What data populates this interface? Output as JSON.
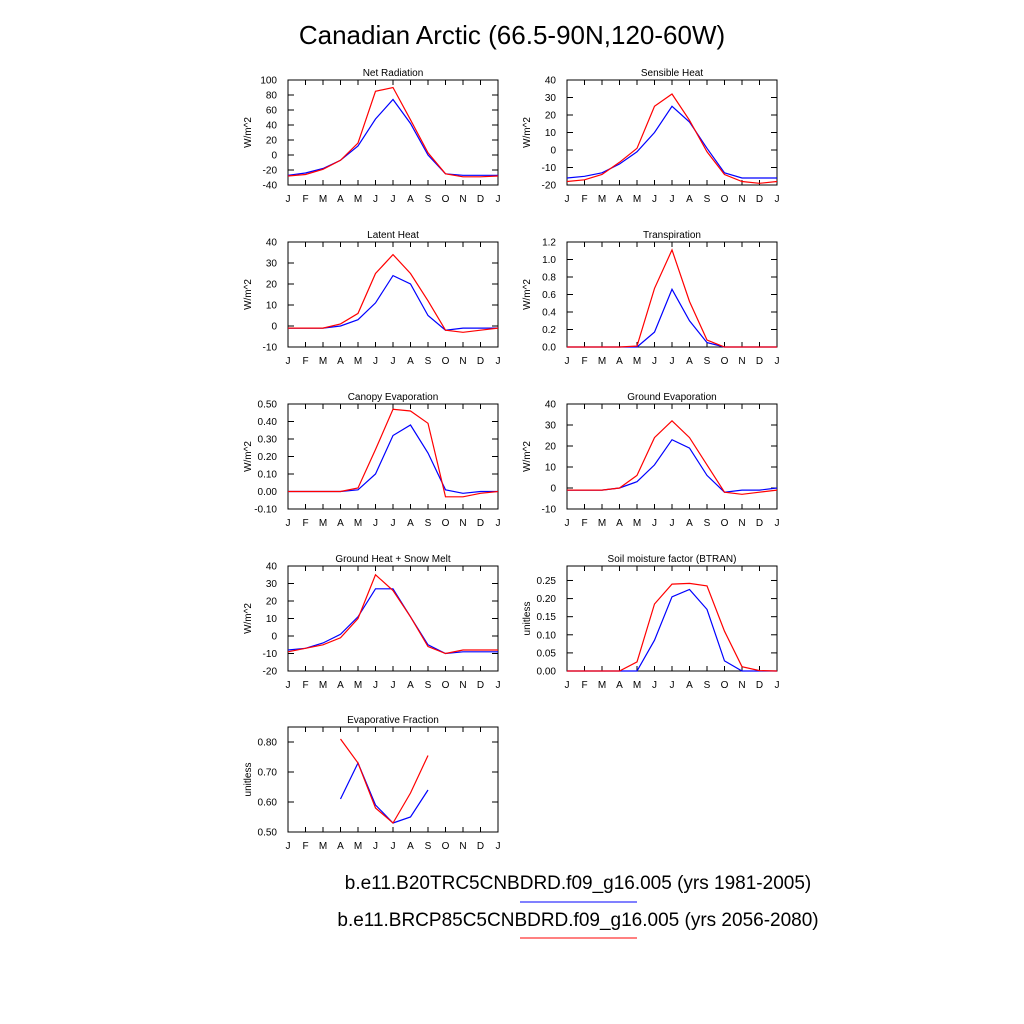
{
  "figure": {
    "title": "Canadian Arctic (66.5-90N,120-60W)",
    "legend": [
      {
        "label": "b.e11.B20TRC5CNBDRD.f09_g16.005 (yrs 1981-2005)",
        "color": "#0000ff"
      },
      {
        "label": "b.e11.BRCP85C5CNBDRD.f09_g16.005 (yrs 2056-2080)",
        "color": "#ff0000"
      }
    ]
  },
  "chart_data": [
    {
      "type": "line",
      "title": "Net Radiation",
      "ylabel": "W/m^2",
      "x": [
        "J",
        "F",
        "M",
        "A",
        "M",
        "J",
        "J",
        "A",
        "S",
        "O",
        "N",
        "D",
        "J"
      ],
      "ylim": [
        -40,
        100
      ],
      "yticks": [
        "-40",
        "-20",
        "0",
        "20",
        "40",
        "60",
        "80",
        "100"
      ],
      "series": [
        {
          "color": "#0000ff",
          "values": [
            -27,
            -24,
            -18,
            -7,
            12,
            48,
            74,
            42,
            0,
            -25,
            -27,
            -27,
            -27
          ]
        },
        {
          "color": "#ff0000",
          "values": [
            -28,
            -26,
            -19,
            -7,
            16,
            85,
            90,
            47,
            3,
            -25,
            -29,
            -29,
            -28
          ]
        }
      ]
    },
    {
      "type": "line",
      "title": "Sensible Heat",
      "ylabel": "W/m^2",
      "x": [
        "J",
        "F",
        "M",
        "A",
        "M",
        "J",
        "J",
        "A",
        "S",
        "O",
        "N",
        "D",
        "J"
      ],
      "ylim": [
        -20,
        40
      ],
      "yticks": [
        "-20",
        "-10",
        "0",
        "10",
        "20",
        "30",
        "40"
      ],
      "series": [
        {
          "color": "#0000ff",
          "values": [
            -16,
            -15,
            -13,
            -8,
            -1,
            10,
            25,
            16,
            1,
            -13,
            -16,
            -16,
            -16
          ]
        },
        {
          "color": "#ff0000",
          "values": [
            -18,
            -17,
            -14,
            -7,
            1,
            25,
            32,
            17,
            -1,
            -14,
            -18,
            -19,
            -18
          ]
        }
      ]
    },
    {
      "type": "line",
      "title": "Latent Heat",
      "ylabel": "W/m^2",
      "x": [
        "J",
        "F",
        "M",
        "A",
        "M",
        "J",
        "J",
        "A",
        "S",
        "O",
        "N",
        "D",
        "J"
      ],
      "ylim": [
        -10,
        40
      ],
      "yticks": [
        "-10",
        "0",
        "10",
        "20",
        "30",
        "40"
      ],
      "series": [
        {
          "color": "#0000ff",
          "values": [
            -1,
            -1,
            -1,
            0,
            3,
            11,
            24,
            20,
            5,
            -2,
            -1,
            -1,
            -1
          ]
        },
        {
          "color": "#ff0000",
          "values": [
            -1,
            -1,
            -1,
            1,
            6,
            25,
            34,
            25,
            12,
            -2,
            -3,
            -2,
            -1
          ]
        }
      ]
    },
    {
      "type": "line",
      "title": "Transpiration",
      "ylabel": "W/m^2",
      "x": [
        "J",
        "F",
        "M",
        "A",
        "M",
        "J",
        "J",
        "A",
        "S",
        "O",
        "N",
        "D",
        "J"
      ],
      "ylim": [
        0,
        1.2
      ],
      "yticks": [
        "0.0",
        "0.2",
        "0.4",
        "0.6",
        "0.8",
        "1.0",
        "1.2"
      ],
      "series": [
        {
          "color": "#0000ff",
          "values": [
            0,
            0,
            0,
            0,
            0,
            0.17,
            0.66,
            0.3,
            0.05,
            0,
            0,
            0,
            0
          ]
        },
        {
          "color": "#ff0000",
          "values": [
            0,
            0,
            0,
            0,
            0.01,
            0.67,
            1.11,
            0.52,
            0.08,
            0,
            0,
            0,
            0
          ]
        }
      ]
    },
    {
      "type": "line",
      "title": "Canopy Evaporation",
      "ylabel": "W/m^2",
      "x": [
        "J",
        "F",
        "M",
        "A",
        "M",
        "J",
        "J",
        "A",
        "S",
        "O",
        "N",
        "D",
        "J"
      ],
      "ylim": [
        -0.1,
        0.5
      ],
      "yticks": [
        "-0.10",
        "0.00",
        "0.10",
        "0.20",
        "0.30",
        "0.40",
        "0.50"
      ],
      "series": [
        {
          "color": "#0000ff",
          "values": [
            0,
            0,
            0,
            0,
            0.01,
            0.1,
            0.32,
            0.38,
            0.22,
            0.01,
            -0.01,
            0,
            0
          ]
        },
        {
          "color": "#ff0000",
          "values": [
            0,
            0,
            0,
            0,
            0.02,
            0.24,
            0.47,
            0.46,
            0.39,
            -0.03,
            -0.03,
            -0.01,
            0
          ]
        }
      ]
    },
    {
      "type": "line",
      "title": "Ground Evaporation",
      "ylabel": "W/m^2",
      "x": [
        "J",
        "F",
        "M",
        "A",
        "M",
        "J",
        "J",
        "A",
        "S",
        "O",
        "N",
        "D",
        "J"
      ],
      "ylim": [
        -10,
        40
      ],
      "yticks": [
        "-10",
        "0",
        "10",
        "20",
        "30",
        "40"
      ],
      "series": [
        {
          "color": "#0000ff",
          "values": [
            -1,
            -1,
            -1,
            0,
            3,
            11,
            23,
            19,
            6,
            -2,
            -1,
            -1,
            0
          ]
        },
        {
          "color": "#ff0000",
          "values": [
            -1,
            -1,
            -1,
            0,
            6,
            24,
            32,
            24,
            11,
            -2,
            -3,
            -2,
            -1
          ]
        }
      ]
    },
    {
      "type": "line",
      "title": "Ground Heat + Snow Melt",
      "ylabel": "W/m^2",
      "x": [
        "J",
        "F",
        "M",
        "A",
        "M",
        "J",
        "J",
        "A",
        "S",
        "O",
        "N",
        "D",
        "J"
      ],
      "ylim": [
        -20,
        40
      ],
      "yticks": [
        "-20",
        "-10",
        "0",
        "10",
        "20",
        "30",
        "40"
      ],
      "series": [
        {
          "color": "#0000ff",
          "values": [
            -8,
            -7,
            -4,
            1,
            11,
            27,
            27,
            11,
            -5,
            -10,
            -9,
            -9,
            -9
          ]
        },
        {
          "color": "#ff0000",
          "values": [
            -9,
            -7,
            -5,
            -1,
            10,
            35,
            26,
            11,
            -6,
            -10,
            -8,
            -8,
            -8
          ]
        }
      ]
    },
    {
      "type": "line",
      "title": "Soil moisture factor (BTRAN)",
      "ylabel": "unitless",
      "x": [
        "J",
        "F",
        "M",
        "A",
        "M",
        "J",
        "J",
        "A",
        "S",
        "O",
        "N",
        "D",
        "J"
      ],
      "ylim": [
        0,
        0.29
      ],
      "yticks": [
        "0.00",
        "0.05",
        "0.10",
        "0.15",
        "0.20",
        "0.25"
      ],
      "series": [
        {
          "color": "#0000ff",
          "values": [
            0,
            0,
            0,
            0,
            0,
            0.085,
            0.205,
            0.225,
            0.17,
            0.028,
            0,
            0,
            0
          ]
        },
        {
          "color": "#ff0000",
          "values": [
            0,
            0,
            0,
            0,
            0.025,
            0.185,
            0.24,
            0.242,
            0.235,
            0.11,
            0.012,
            0.001,
            0
          ]
        }
      ]
    },
    {
      "type": "line",
      "title": "Evaporative Fraction",
      "ylabel": "unitless",
      "x": [
        "J",
        "F",
        "M",
        "A",
        "M",
        "J",
        "J",
        "A",
        "S",
        "O",
        "N",
        "D",
        "J"
      ],
      "ylim": [
        0.5,
        0.85
      ],
      "yticks": [
        "0.50",
        "0.60",
        "0.70",
        "0.80"
      ],
      "series": [
        {
          "color": "#0000ff",
          "values": [
            null,
            null,
            null,
            0.61,
            0.73,
            0.59,
            0.53,
            0.55,
            0.64,
            null,
            null,
            null,
            null
          ]
        },
        {
          "color": "#ff0000",
          "values": [
            null,
            null,
            null,
            0.81,
            0.73,
            0.58,
            0.53,
            0.63,
            0.755,
            null,
            null,
            null,
            null
          ]
        }
      ]
    }
  ]
}
